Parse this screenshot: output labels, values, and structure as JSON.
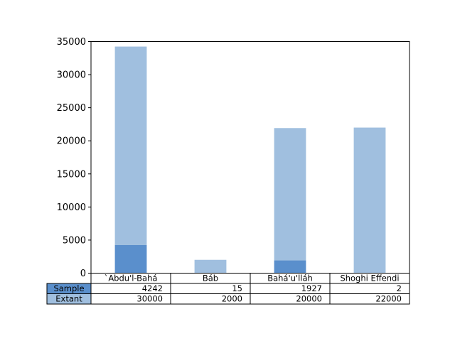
{
  "chart_data": {
    "type": "bar",
    "stacked": true,
    "categories": [
      "`Abdu'l-Bahá",
      "Báb",
      "Bahá'u'lláh",
      "Shoghi Effendi"
    ],
    "series": [
      {
        "name": "Sample",
        "values": [
          4242,
          15,
          1927,
          2
        ],
        "color": "#5a8fcc"
      },
      {
        "name": "Extant",
        "values": [
          30000,
          2000,
          20000,
          22000
        ],
        "color": "#a0bfdf"
      }
    ],
    "ylim": [
      0,
      35000
    ],
    "yticks": [
      "0",
      "5000",
      "10000",
      "15000",
      "20000",
      "25000",
      "30000",
      "35000"
    ],
    "title": "",
    "xlabel": "",
    "ylabel": "",
    "grid": false,
    "table": {
      "row_labels": [
        "Sample",
        "Extant"
      ],
      "cells": [
        [
          "4242",
          "15",
          "1927",
          "2"
        ],
        [
          "30000",
          "2000",
          "20000",
          "22000"
        ]
      ]
    }
  }
}
